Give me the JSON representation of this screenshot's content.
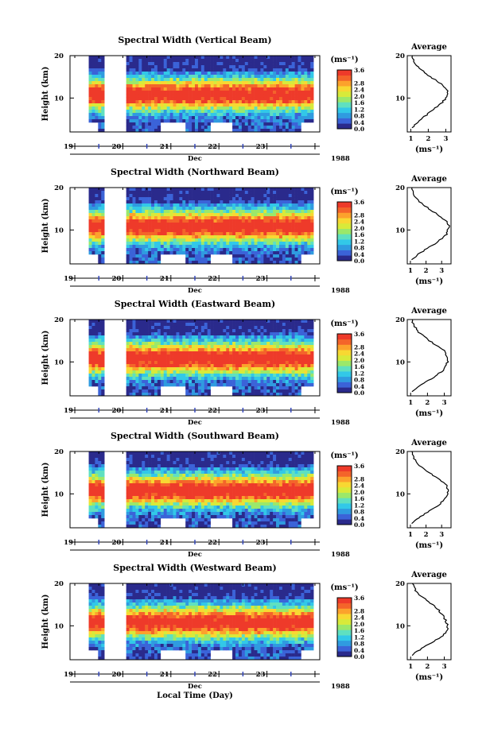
{
  "figure": {
    "xlabel_bottom": "Local Time (Day)",
    "month_label": "Dec",
    "year_label": "1988"
  },
  "colormap": [
    "#2a2a8c",
    "#3b63d8",
    "#2f9be0",
    "#32c8e8",
    "#5fe0c0",
    "#9be86a",
    "#d8ea3a",
    "#f8d832",
    "#fca22c",
    "#f4642a",
    "#ee3a2a"
  ],
  "chart_data": [
    {
      "type": "heatmap",
      "title": "Spectral Width (Vertical Beam)",
      "ylabel": "Height (km)",
      "ylim": [
        2,
        20
      ],
      "yticks": [
        10,
        20
      ],
      "xlim": [
        18.9,
        24.1
      ],
      "xticks": [
        "19",
        "20",
        "21",
        "22",
        "23"
      ],
      "gaps": [
        [
          19.6,
          20.1
        ]
      ],
      "colorbar": {
        "unit": "(ms⁻¹)",
        "range": [
          0,
          3.6
        ],
        "ticks": [
          "0.0",
          "0.4",
          "0.8",
          "1.2",
          "1.6",
          "2.0",
          "2.4",
          "2.8"
        ],
        "top_tick": "3.6"
      },
      "average": {
        "title": "Average",
        "xlabel": "(ms⁻¹)",
        "xticks": [
          "1",
          "2",
          "3"
        ],
        "xlim": [
          0.8,
          3.3
        ],
        "ylim": [
          2,
          20
        ],
        "yticks": [
          10,
          20
        ],
        "profile": {
          "height": [
            3,
            4,
            5,
            6,
            7,
            8,
            9,
            10,
            11,
            12,
            13,
            14,
            15,
            16,
            17,
            18,
            19,
            20
          ],
          "width": [
            1.1,
            1.3,
            1.6,
            1.9,
            2.2,
            2.5,
            2.8,
            3.0,
            3.1,
            3.05,
            2.85,
            2.5,
            2.1,
            1.8,
            1.5,
            1.3,
            1.15,
            1.1
          ]
        }
      }
    },
    {
      "type": "heatmap",
      "title": "Spectral Width (Northward Beam)",
      "ylabel": "Height (km)",
      "ylim": [
        2,
        20
      ],
      "yticks": [
        10,
        20
      ],
      "xlim": [
        18.9,
        24.1
      ],
      "xticks": [
        "19",
        "20",
        "21",
        "22",
        "23"
      ],
      "gaps": [
        [
          19.6,
          20.1
        ]
      ],
      "colorbar": {
        "unit": "(ms⁻¹)",
        "range": [
          0,
          3.6
        ],
        "ticks": [
          "0.0",
          "0.4",
          "0.8",
          "1.2",
          "1.6",
          "2.0",
          "2.4",
          "2.8"
        ],
        "top_tick": "3.6"
      },
      "average": {
        "title": "Average",
        "xlabel": "(ms⁻¹)",
        "xticks": [
          "1",
          "2",
          "3"
        ],
        "xlim": [
          0.8,
          3.6
        ],
        "ylim": [
          2,
          20
        ],
        "yticks": [
          10,
          20
        ],
        "profile": {
          "height": [
            3,
            4,
            5,
            6,
            7,
            8,
            9,
            10,
            11,
            12,
            13,
            14,
            15,
            16,
            17,
            18,
            19,
            20
          ],
          "width": [
            1.1,
            1.4,
            1.8,
            2.2,
            2.7,
            3.0,
            3.3,
            3.4,
            3.45,
            3.3,
            3.0,
            2.6,
            2.2,
            1.8,
            1.5,
            1.3,
            1.15,
            1.1
          ]
        }
      }
    },
    {
      "type": "heatmap",
      "title": "Spectral Width (Eastward Beam)",
      "ylabel": "Height (km)",
      "ylim": [
        2,
        20
      ],
      "yticks": [
        10,
        20
      ],
      "xlim": [
        18.9,
        24.1
      ],
      "xticks": [
        "19",
        "20",
        "21",
        "22",
        "23"
      ],
      "gaps": [
        [
          19.6,
          20.1
        ]
      ],
      "colorbar": {
        "unit": "(ms⁻¹)",
        "range": [
          0,
          3.6
        ],
        "ticks": [
          "0.0",
          "0.4",
          "0.8",
          "1.2",
          "1.6",
          "2.0",
          "2.4",
          "2.8"
        ],
        "top_tick": "3.6"
      },
      "average": {
        "title": "Average",
        "xlabel": "(ms⁻¹)",
        "xticks": [
          "1",
          "2",
          "3"
        ],
        "xlim": [
          0.8,
          3.4
        ],
        "ylim": [
          2,
          20
        ],
        "yticks": [
          10,
          20
        ],
        "profile": {
          "height": [
            3,
            4,
            5,
            6,
            7,
            8,
            9,
            10,
            11,
            12,
            13,
            14,
            15,
            16,
            17,
            18,
            19,
            20
          ],
          "width": [
            1.1,
            1.4,
            1.8,
            2.2,
            2.6,
            2.9,
            3.1,
            3.2,
            3.2,
            3.1,
            2.9,
            2.5,
            2.1,
            1.8,
            1.5,
            1.3,
            1.15,
            1.1
          ]
        }
      }
    },
    {
      "type": "heatmap",
      "title": "Spectral Width (Southward Beam)",
      "ylabel": "Height (km)",
      "ylim": [
        2,
        20
      ],
      "yticks": [
        10,
        20
      ],
      "xlim": [
        18.9,
        24.1
      ],
      "xticks": [
        "19",
        "20",
        "21",
        "22",
        "23"
      ],
      "gaps": [
        [
          19.6,
          20.1
        ]
      ],
      "colorbar": {
        "unit": "(ms⁻¹)",
        "range": [
          0,
          3.6
        ],
        "ticks": [
          "0.0",
          "0.4",
          "0.8",
          "1.2",
          "1.6",
          "2.0",
          "2.4",
          "2.8"
        ],
        "top_tick": "3.6"
      },
      "average": {
        "title": "Average",
        "xlabel": "(ms⁻¹)",
        "xticks": [
          "1",
          "2",
          "3"
        ],
        "xlim": [
          0.8,
          3.6
        ],
        "ylim": [
          2,
          20
        ],
        "yticks": [
          10,
          20
        ],
        "profile": {
          "height": [
            3,
            4,
            5,
            6,
            7,
            8,
            9,
            10,
            11,
            12,
            13,
            14,
            15,
            16,
            17,
            18,
            19,
            20
          ],
          "width": [
            1.1,
            1.4,
            1.8,
            2.2,
            2.7,
            3.0,
            3.25,
            3.4,
            3.4,
            3.3,
            3.0,
            2.6,
            2.2,
            1.8,
            1.5,
            1.3,
            1.15,
            1.1
          ]
        }
      }
    },
    {
      "type": "heatmap",
      "title": "Spectral Width (Westward Beam)",
      "ylabel": "Height (km)",
      "ylim": [
        2,
        20
      ],
      "yticks": [
        10,
        20
      ],
      "xlim": [
        18.9,
        24.1
      ],
      "xticks": [
        "19",
        "20",
        "21",
        "22",
        "23"
      ],
      "gaps": [
        [
          19.6,
          20.1
        ]
      ],
      "colorbar": {
        "unit": "(ms⁻¹)",
        "range": [
          0,
          3.6
        ],
        "ticks": [
          "0.0",
          "0.4",
          "0.8",
          "1.2",
          "1.6",
          "2.0",
          "2.4",
          "2.8"
        ],
        "top_tick": "3.6"
      },
      "average": {
        "title": "Average",
        "xlabel": "(ms⁻¹)",
        "xticks": [
          "1",
          "2",
          "3"
        ],
        "xlim": [
          0.8,
          3.4
        ],
        "ylim": [
          2,
          20
        ],
        "yticks": [
          10,
          20
        ],
        "profile": {
          "height": [
            3,
            4,
            5,
            6,
            7,
            8,
            9,
            10,
            11,
            12,
            13,
            14,
            15,
            16,
            17,
            18,
            19,
            20
          ],
          "width": [
            1.1,
            1.4,
            1.8,
            2.2,
            2.7,
            3.0,
            3.2,
            3.2,
            3.1,
            3.0,
            2.8,
            2.6,
            2.3,
            2.0,
            1.6,
            1.35,
            1.2,
            1.1
          ]
        }
      }
    }
  ]
}
